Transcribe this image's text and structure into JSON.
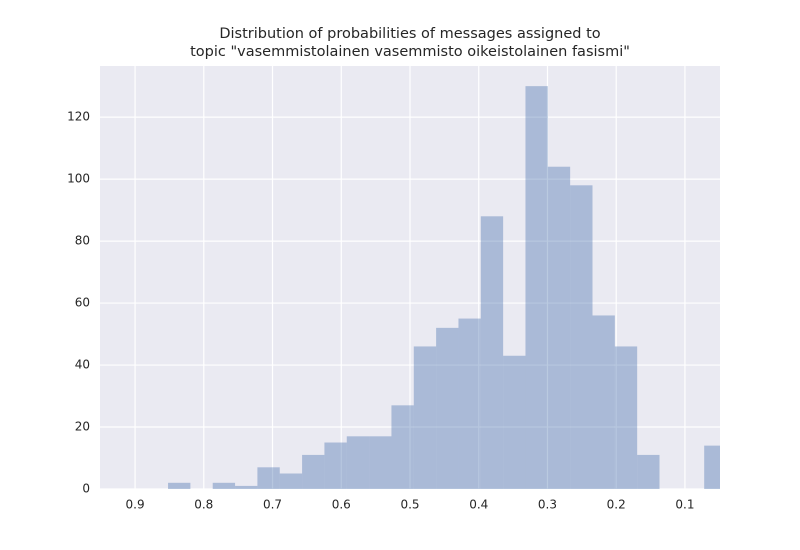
{
  "chart_data": {
    "type": "histogram",
    "title": [
      "Distribution of probabilities of messages assigned to",
      "topic \"vasemmistolainen vasemmisto oikeistolainen fasismi\""
    ],
    "bins": [
      0.852,
      0.8195,
      0.787,
      0.7545,
      0.722,
      0.6895,
      0.657,
      0.6245,
      0.592,
      0.5595,
      0.527,
      0.4945,
      0.462,
      0.4295,
      0.397,
      0.3645,
      0.332,
      0.2995,
      0.267,
      0.2345,
      0.202,
      0.1695,
      0.137,
      0.1045,
      0.072,
      0.0395
    ],
    "values": [
      2,
      0,
      2,
      1,
      7,
      5,
      11,
      15,
      17,
      17,
      27,
      46,
      52,
      55,
      88,
      43,
      130,
      104,
      98,
      56,
      46,
      11,
      0,
      0,
      14
    ],
    "color": "#4c72b0",
    "alpha": 0.4,
    "xlim": [
      0.951,
      0.049
    ],
    "xticks": [
      0.9,
      0.8,
      0.7,
      0.6,
      0.5,
      0.4,
      0.3,
      0.2,
      0.1
    ],
    "ylim": [
      0,
      136.5
    ],
    "yticks": [
      0,
      20,
      40,
      60,
      80,
      100,
      120
    ],
    "grid": true
  }
}
